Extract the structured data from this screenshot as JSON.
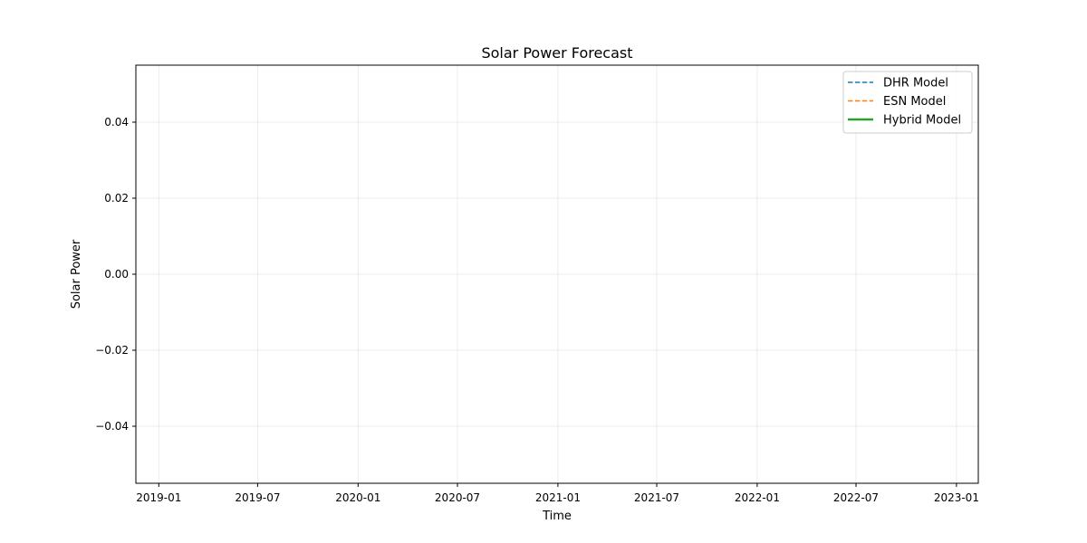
{
  "chart_data": {
    "type": "line",
    "title": "Solar Power Forecast",
    "xlabel": "Time",
    "ylabel": "Solar Power",
    "x_axis": {
      "scale": "date",
      "range": [
        "2018-11-20",
        "2023-02-10"
      ],
      "ticks": [
        "2019-01",
        "2019-07",
        "2020-01",
        "2020-07",
        "2021-01",
        "2021-07",
        "2022-01",
        "2022-07",
        "2023-01"
      ]
    },
    "y_axis": {
      "range": [
        -0.055,
        0.055
      ],
      "ticks": [
        "−0.04",
        "−0.02",
        "0.00",
        "0.02",
        "0.04"
      ],
      "tick_values": [
        -0.04,
        -0.02,
        0.0,
        0.02,
        0.04
      ]
    },
    "grid": true,
    "legend_placement": "top-right",
    "series": [
      {
        "name": "DHR Model",
        "color": "#1f77b4",
        "style": "dashed",
        "values": []
      },
      {
        "name": "ESN Model",
        "color": "#ff7f0e",
        "style": "dashed",
        "values": []
      },
      {
        "name": "Hybrid Model",
        "color": "#2ca02c",
        "style": "solid",
        "values": []
      }
    ]
  }
}
